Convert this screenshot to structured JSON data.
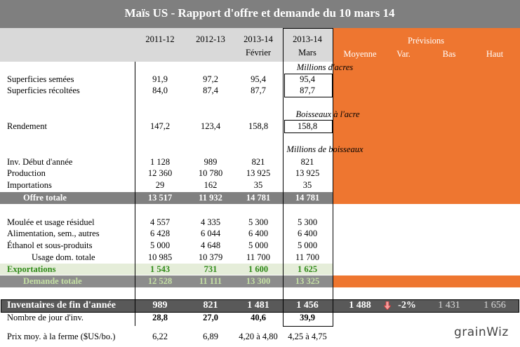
{
  "header": {
    "title": "Maïs US - Rapport d'offre et demande du 10 mars 14",
    "columns": [
      [
        "2011-12"
      ],
      [
        "2012-13"
      ],
      [
        "2013-14",
        "Février"
      ],
      [
        "2013-14",
        "Mars"
      ]
    ],
    "forecast": {
      "title": "Prévisions",
      "columns": [
        "Moyenne",
        "Var.",
        "Bas",
        "Haut"
      ]
    }
  },
  "units": [
    "Millions d'acres",
    "Boisseaux à l'acre",
    "Millions de boisseaux"
  ],
  "rows": [
    {
      "label": "Superficies semées",
      "values": [
        "91,9",
        "97,2",
        "95,4",
        "95,4"
      ]
    },
    {
      "label": "Superficies récoltées",
      "values": [
        "84,0",
        "87,4",
        "87,7",
        "87,7"
      ]
    },
    {
      "label": "Rendement",
      "values": [
        "147,2",
        "123,4",
        "158,8",
        "158,8"
      ]
    },
    {
      "label": "Inv. Début d'année",
      "values": [
        "1 128",
        "989",
        "821",
        "821"
      ]
    },
    {
      "label": "Production",
      "values": [
        "12 360",
        "10 780",
        "13 925",
        "13 925"
      ]
    },
    {
      "label": "Importations",
      "values": [
        "29",
        "162",
        "35",
        "35"
      ]
    },
    {
      "label": "Offre totale",
      "values": [
        "13 517",
        "11 932",
        "14 781",
        "14 781"
      ]
    },
    {
      "label": "Moulée et usage résiduel",
      "values": [
        "4 557",
        "4 335",
        "5 300",
        "5 300"
      ]
    },
    {
      "label": "Alimentation, sem., autres",
      "values": [
        "6 428",
        "6 044",
        "6 400",
        "6 400"
      ]
    },
    {
      "label": "Éthanol et sous-produits",
      "values": [
        "5 000",
        "4 648",
        "5 000",
        "5 000"
      ]
    },
    {
      "label": "Usage dom. totale",
      "values": [
        "10 985",
        "10 379",
        "11 700",
        "11 700"
      ]
    },
    {
      "label": "Exportations",
      "values": [
        "1 543",
        "731",
        "1 600",
        "1 625"
      ]
    },
    {
      "label": "Demande totale",
      "values": [
        "12 528",
        "11 111",
        "13 300",
        "13 325"
      ]
    },
    {
      "label": "Inventaires de fin d'année",
      "values": [
        "989",
        "821",
        "1 481",
        "1 456"
      ],
      "forecast": [
        "1 488",
        "-2%",
        "1 431",
        "1 656"
      ]
    },
    {
      "label": "Nombre de jour d'inv.",
      "values": [
        "28,8",
        "27,0",
        "40,6",
        "39,9"
      ]
    },
    {
      "label": "Prix moy. à la ferme ($US/bo.)",
      "values": [
        "6,22",
        "6,89",
        "4,20 à 4,80",
        "4,25 à 4,75"
      ]
    }
  ],
  "logo": "grainWiz"
}
